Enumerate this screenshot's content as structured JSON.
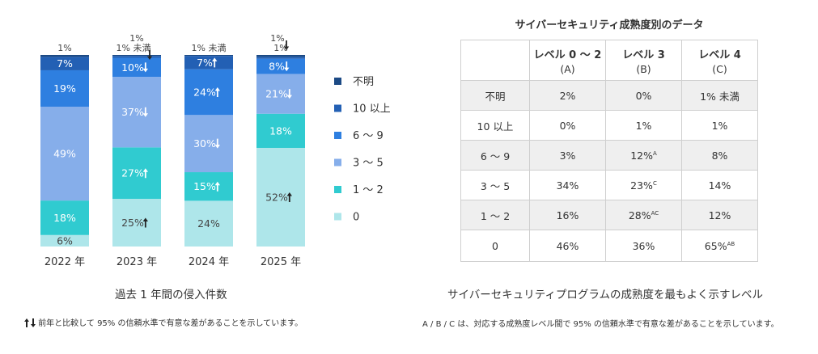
{
  "chart_data": {
    "type": "bar",
    "stacked": true,
    "percent": true,
    "categories": [
      "2022 年",
      "2023 年",
      "2024 年",
      "2025 年"
    ],
    "series": [
      {
        "name": "0",
        "color": "#aee6ea",
        "values": [
          6,
          25,
          24,
          52
        ],
        "labels": [
          "6%",
          "25%",
          "24%",
          "52%"
        ],
        "arrows": [
          "",
          "up",
          "",
          "up"
        ]
      },
      {
        "name": "1 ～ 2",
        "color": "#30cbd0",
        "values": [
          18,
          27,
          15,
          18
        ],
        "labels": [
          "18%",
          "27%",
          "15%",
          "18%"
        ],
        "arrows": [
          "",
          "up",
          "up",
          ""
        ]
      },
      {
        "name": "3 ～ 5",
        "color": "#86aeea",
        "values": [
          49,
          37,
          30,
          21
        ],
        "labels": [
          "49%",
          "37%",
          "30%",
          "21%"
        ],
        "arrows": [
          "",
          "down",
          "down",
          "down"
        ]
      },
      {
        "name": "6 ～ 9",
        "color": "#2e7fe0",
        "values": [
          19,
          10,
          24,
          8
        ],
        "labels": [
          "19%",
          "10%",
          "24%",
          "8%"
        ],
        "arrows": [
          "",
          "down",
          "up",
          "down"
        ]
      },
      {
        "name": "10 以上",
        "color": "#2360b4",
        "values": [
          7,
          1,
          7,
          1
        ],
        "labels": [
          "7%",
          "1%",
          "7%",
          "1%"
        ],
        "arrows": [
          "",
          "",
          "up",
          "down"
        ]
      },
      {
        "name": "不明",
        "color": "#1c4a85",
        "values": [
          1,
          0.5,
          0.5,
          1
        ],
        "labels": [
          "1%",
          "1% 未満",
          "1% 未満",
          "1%"
        ],
        "arrows": [
          "",
          "down",
          "",
          ""
        ]
      }
    ],
    "ylim": [
      0,
      100
    ],
    "legend_position": "right",
    "xlabel": "過去 1 年間の侵入件数",
    "ylabel": "",
    "grid": false
  },
  "left": {
    "caption": "過去 1 年間の侵入件数",
    "footnote_icon": "up-down-arrows-icon",
    "footnote": "前年と比較して 95% の信頼水準で有意な差があることを示しています。"
  },
  "table": {
    "title": "サイバーセキュリティ成熟度別のデータ",
    "headers": [
      {
        "name": "レベル 0 ～ 2",
        "sub": "(A)"
      },
      {
        "name": "レベル 3",
        "sub": "(B)"
      },
      {
        "name": "レベル 4",
        "sub": "(C)"
      }
    ],
    "rows": [
      {
        "label": "不明",
        "cells": [
          {
            "v": "2%",
            "s": ""
          },
          {
            "v": "0%",
            "s": ""
          },
          {
            "v": "1% 未満",
            "s": ""
          }
        ]
      },
      {
        "label": "10 以上",
        "cells": [
          {
            "v": "0%",
            "s": ""
          },
          {
            "v": "1%",
            "s": ""
          },
          {
            "v": "1%",
            "s": ""
          }
        ]
      },
      {
        "label": "6 ～ 9",
        "cells": [
          {
            "v": "3%",
            "s": ""
          },
          {
            "v": "12%",
            "s": "A"
          },
          {
            "v": "8%",
            "s": ""
          }
        ]
      },
      {
        "label": "3 ～ 5",
        "cells": [
          {
            "v": "34%",
            "s": ""
          },
          {
            "v": "23%",
            "s": "C"
          },
          {
            "v": "14%",
            "s": ""
          }
        ]
      },
      {
        "label": "1 ～ 2",
        "cells": [
          {
            "v": "16%",
            "s": ""
          },
          {
            "v": "28%",
            "s": "AC"
          },
          {
            "v": "12%",
            "s": ""
          }
        ]
      },
      {
        "label": "0",
        "cells": [
          {
            "v": "46%",
            "s": ""
          },
          {
            "v": "36%",
            "s": ""
          },
          {
            "v": "65%",
            "s": "AB"
          }
        ]
      }
    ],
    "caption": "サイバーセキュリティプログラムの成熟度を最もよく示すレベル",
    "footnote": "A / B / C は、対応する成熟度レベル間で 95% の信頼水準で有意な差があることを示しています。"
  }
}
